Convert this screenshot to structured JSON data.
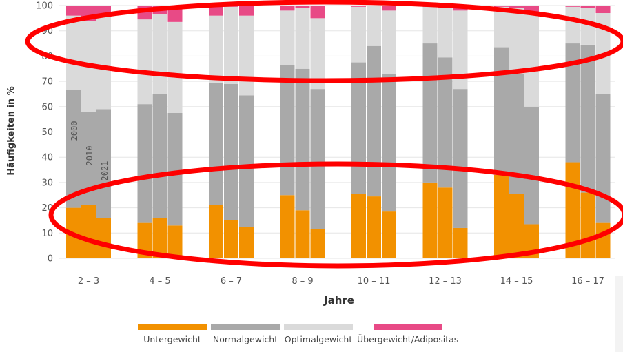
{
  "chart_data": {
    "type": "bar",
    "stacked": true,
    "ylabel": "Häufigkeiten in %",
    "xlabel": "Jahre",
    "ylim": [
      0,
      100
    ],
    "yticks": [
      0,
      10,
      20,
      30,
      40,
      50,
      60,
      70,
      80,
      90,
      100
    ],
    "categories": [
      "2 – 3",
      "4 – 5",
      "6 – 7",
      "8 – 9",
      "10 – 11",
      "12 – 13",
      "14 – 15",
      "16 – 17"
    ],
    "bar_years": [
      "2000",
      "2010",
      "2021"
    ],
    "series": [
      {
        "name": "Untergewicht",
        "color": "#f29100",
        "values": [
          [
            20,
            21,
            16
          ],
          [
            14,
            16,
            13
          ],
          [
            21,
            15,
            12.5
          ],
          [
            25,
            19,
            11.5
          ],
          [
            25.5,
            24.5,
            18.5
          ],
          [
            30,
            28,
            12
          ],
          [
            33,
            25.5,
            13.5
          ],
          [
            38,
            26,
            14
          ]
        ]
      },
      {
        "name": "Normalgewicht",
        "color": "#a9a9a9",
        "values": [
          [
            46.5,
            37,
            43
          ],
          [
            47,
            49,
            44.5
          ],
          [
            48.5,
            54,
            52
          ],
          [
            51.5,
            56,
            55.5
          ],
          [
            52,
            59.5,
            54.5
          ],
          [
            55,
            51.5,
            55
          ],
          [
            50.5,
            47.5,
            46.5
          ],
          [
            47,
            58.5,
            51
          ]
        ]
      },
      {
        "name": "Optimalgewicht",
        "color": "#dadada",
        "values": [
          [
            29.5,
            36,
            37
          ],
          [
            33.5,
            31.5,
            36
          ],
          [
            26.5,
            30.5,
            31.5
          ],
          [
            21.5,
            24,
            28
          ],
          [
            22,
            16,
            25
          ],
          [
            14.5,
            19.5,
            31
          ],
          [
            16,
            26,
            37.5
          ],
          [
            14.5,
            14.5,
            32
          ]
        ]
      },
      {
        "name": "Übergewicht/Adipositas",
        "color": "#e84a86",
        "values": [
          [
            4,
            6,
            4
          ],
          [
            5.5,
            3.5,
            6.5
          ],
          [
            4,
            0.5,
            4
          ],
          [
            2,
            1,
            5
          ],
          [
            0.5,
            0,
            2
          ],
          [
            0.5,
            1,
            2
          ],
          [
            0.5,
            1,
            2.5
          ],
          [
            0.5,
            1,
            3
          ]
        ]
      }
    ],
    "annotations": [
      {
        "type": "ellipse",
        "color": "#ff0000",
        "label": ""
      },
      {
        "type": "ellipse",
        "color": "#ff0000",
        "label": ""
      }
    ]
  }
}
